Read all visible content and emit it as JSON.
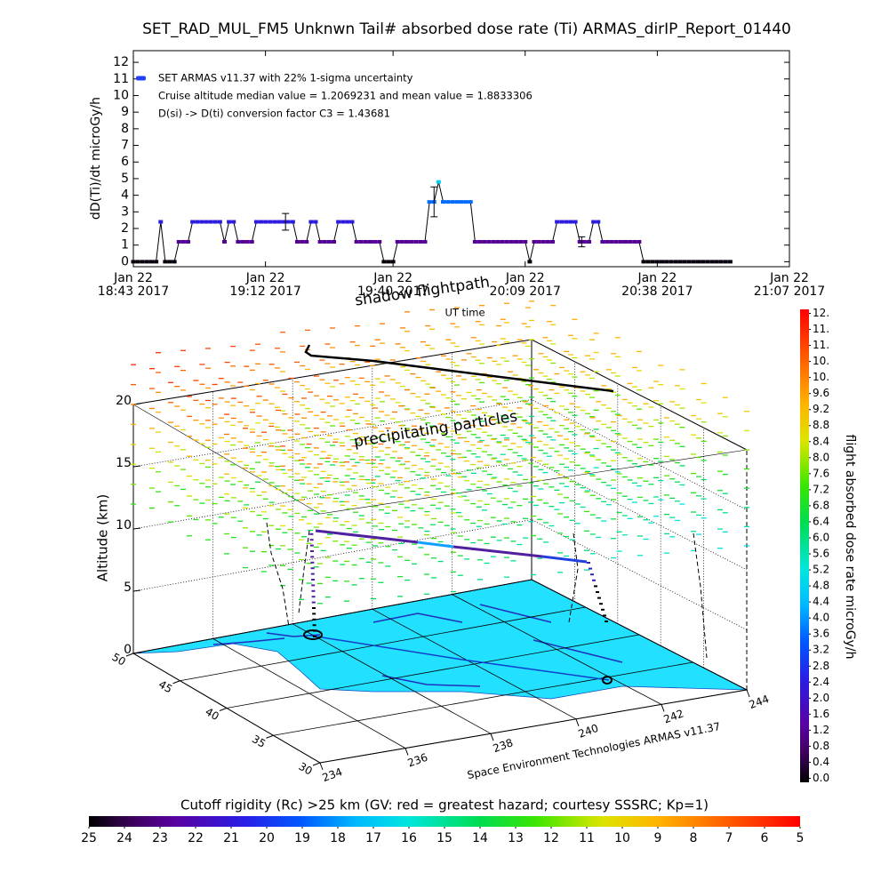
{
  "chart_data": [
    {
      "type": "line",
      "title": "SET_RAD_MUL_FM5 Unknwn Tail#  absorbed dose rate (Ti) ARMAS_dirIP_Report_01440",
      "ylabel": "dD(Ti)/dt microGy/h",
      "xlabel": "UT time",
      "xlim": [
        1123,
        1267
      ],
      "xticks": [
        {
          "value": 1123,
          "label": "Jan 22\n18:43 2017"
        },
        {
          "value": 1152,
          "label": "Jan 22\n19:12 2017"
        },
        {
          "value": 1180,
          "label": "Jan 22\n19:40 2017"
        },
        {
          "value": 1209,
          "label": "Jan 22\n20:09 2017"
        },
        {
          "value": 1238,
          "label": "Jan 22\n20:38 2017"
        },
        {
          "value": 1267,
          "label": "Jan 22\n21:07 2017"
        }
      ],
      "ylim": [
        -0.3,
        12.7
      ],
      "yticks": [
        0,
        1,
        2,
        3,
        4,
        5,
        6,
        7,
        8,
        9,
        10,
        11,
        12
      ],
      "x": [
        1123,
        1124,
        1125,
        1126,
        1127,
        1128,
        1129,
        1130,
        1131,
        1132,
        1133,
        1134,
        1135,
        1136,
        1137,
        1138,
        1139,
        1140,
        1141,
        1142,
        1143,
        1144,
        1145,
        1146,
        1147,
        1148,
        1149,
        1150,
        1151,
        1152,
        1153,
        1154,
        1155,
        1156,
        1157,
        1158,
        1159,
        1160,
        1161,
        1162,
        1163,
        1164,
        1165,
        1166,
        1167,
        1168,
        1169,
        1170,
        1171,
        1172,
        1173,
        1174,
        1175,
        1176,
        1177,
        1178,
        1179,
        1180,
        1181,
        1182,
        1183,
        1184,
        1185,
        1186,
        1187,
        1188,
        1189,
        1190,
        1191,
        1192,
        1193,
        1194,
        1195,
        1196,
        1197,
        1198,
        1199,
        1200,
        1201,
        1202,
        1203,
        1204,
        1205,
        1206,
        1207,
        1208,
        1209,
        1210,
        1211,
        1212,
        1213,
        1214,
        1215,
        1216,
        1217,
        1218,
        1219,
        1220,
        1221,
        1222,
        1223,
        1224,
        1225,
        1226,
        1227,
        1228,
        1229,
        1230,
        1231,
        1232,
        1233,
        1234,
        1235,
        1236,
        1237,
        1238,
        1239,
        1240,
        1241,
        1242,
        1243,
        1244,
        1245,
        1246,
        1247,
        1248,
        1249,
        1250,
        1251,
        1252,
        1253,
        1254
      ],
      "series": [
        {
          "name": "SET ARMAS v11.37 with 22% 1-sigma uncertainty",
          "color": "#2040ff",
          "values": [
            0,
            0,
            0,
            0,
            0,
            0,
            2.4,
            0,
            0,
            0,
            1.2,
            1.2,
            1.2,
            2.4,
            2.4,
            2.4,
            2.4,
            2.4,
            2.4,
            2.4,
            1.2,
            2.4,
            2.4,
            1.2,
            1.2,
            1.2,
            1.2,
            2.4,
            2.4,
            2.4,
            2.4,
            2.4,
            2.4,
            2.4,
            2.4,
            2.4,
            1.2,
            1.2,
            1.2,
            2.4,
            2.4,
            1.2,
            1.2,
            1.2,
            1.2,
            2.4,
            2.4,
            2.4,
            2.4,
            1.2,
            1.2,
            1.2,
            1.2,
            1.2,
            1.2,
            0,
            0,
            0,
            1.2,
            1.2,
            1.2,
            1.2,
            1.2,
            1.2,
            1.2,
            3.6,
            3.6,
            4.8,
            3.6,
            3.6,
            3.6,
            3.6,
            3.6,
            3.6,
            3.6,
            1.2,
            1.2,
            1.2,
            1.2,
            1.2,
            1.2,
            1.2,
            1.2,
            1.2,
            1.2,
            1.2,
            1.2,
            0,
            1.2,
            1.2,
            1.2,
            1.2,
            1.2,
            2.4,
            2.4,
            2.4,
            2.4,
            2.4,
            1.2,
            1.2,
            1.2,
            2.4,
            2.4,
            1.2,
            1.2,
            1.2,
            1.2,
            1.2,
            1.2,
            1.2,
            1.2,
            1.2,
            0,
            0,
            0,
            0,
            0,
            0,
            0,
            0,
            0,
            0,
            0,
            0,
            0,
            0,
            0,
            0,
            0,
            0,
            0,
            0
          ]
        }
      ],
      "error_bars": {
        "x": [
          1156.4,
          1189,
          1221.4
        ],
        "values": [
          2.4,
          3.6,
          1.2
        ],
        "errors": [
          0.5,
          0.9,
          0.3
        ]
      },
      "annotations": [
        "Cruise altitude median value = 1.2069231 and mean value = 1.8833306",
        "D(si) -> D(ti) conversion factor C3 = 1.43681"
      ]
    },
    {
      "type": "surface",
      "title": "shadow flightpath",
      "annotation": "precipitating particles",
      "zlabel": "Altitude (km)",
      "zlim": [
        0,
        20
      ],
      "zticks": [
        0,
        5,
        10,
        15,
        20
      ],
      "ylim": [
        50,
        30
      ],
      "yticks": [
        30,
        35,
        40,
        45,
        50
      ],
      "xlim": [
        234,
        244
      ],
      "xticks": [
        234,
        236,
        238,
        240,
        242,
        244
      ],
      "credit": "Space Environment Technologies ARMAS v11.37"
    },
    {
      "type": "colorbar",
      "orientation": "vertical",
      "label": "flight absorbed dose rate microGy/h",
      "clim": [
        -0.1,
        11.7
      ],
      "ticks": [
        {
          "value": 0,
          "label": "0.0"
        },
        0.4,
        0.8,
        1.2,
        1.6,
        {
          "value": 2,
          "label": "2.0"
        },
        2.4,
        2.8,
        3.2,
        3.6,
        {
          "value": 4,
          "label": "4.0"
        },
        4.4,
        4.8,
        5.2,
        5.6,
        {
          "value": 6,
          "label": "6.0"
        },
        6.4,
        6.8,
        7.2,
        7.6,
        {
          "value": 8,
          "label": "8.0"
        },
        8.4,
        8.8,
        9.2,
        9.6,
        {
          "value": 10,
          "label": "10."
        },
        {
          "value": 10.4,
          "label": "10."
        },
        {
          "value": 10.8,
          "label": "11."
        },
        {
          "value": 11.2,
          "label": "11."
        },
        {
          "value": 11.6,
          "label": "12."
        }
      ]
    },
    {
      "type": "colorbar",
      "orientation": "horizontal",
      "label": "Cutoff rigidity (Rc) >25 km (GV: red = greatest hazard; courtesy SSSRC; Kp=1)",
      "clim": [
        25,
        5
      ],
      "ticks": [
        25,
        24,
        23,
        22,
        21,
        20,
        19,
        18,
        17,
        16,
        15,
        14,
        13,
        12,
        11,
        10,
        9,
        8,
        7,
        6,
        5
      ]
    }
  ]
}
